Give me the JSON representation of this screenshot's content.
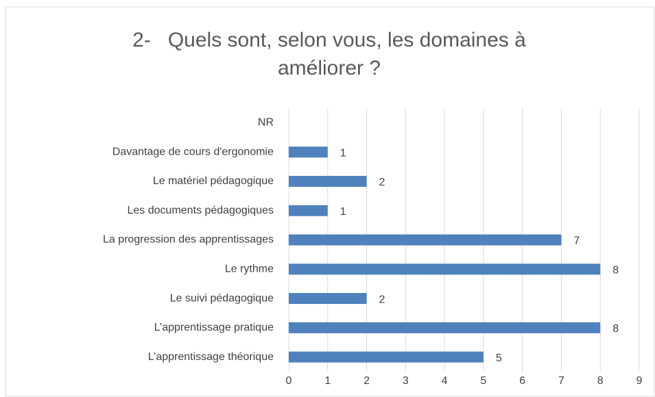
{
  "chart_data": {
    "type": "hbar",
    "title": "2-   Quels sont, selon vous, les domaines à améliorer ?",
    "categories": [
      "NR",
      "Davantage de cours d'ergonomie",
      "Le matériel pédagogique",
      "Les documents pédagogiques",
      "La progression des apprentissages",
      "Le rythme",
      "Le suivi pédagogique",
      "L’apprentissage pratique",
      "L’apprentissage théorique"
    ],
    "values": [
      null,
      1,
      2,
      1,
      7,
      8,
      2,
      8,
      5
    ],
    "color": "#4f81bd",
    "xlim": [
      0,
      9
    ],
    "xticks": [
      0,
      1,
      2,
      3,
      4,
      5,
      6,
      7,
      8,
      9
    ],
    "grid": true
  }
}
